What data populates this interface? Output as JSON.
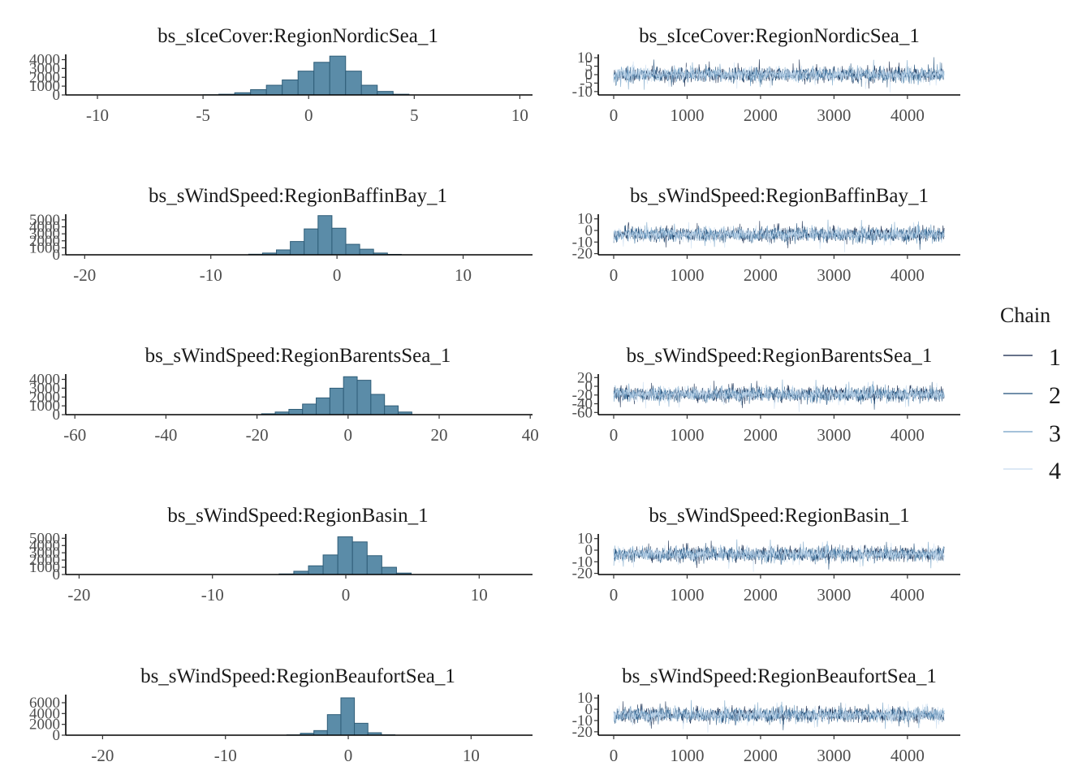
{
  "legend": {
    "title": "Chain",
    "entries": [
      {
        "label": "1",
        "color": "#0a1f44"
      },
      {
        "label": "2",
        "color": "#1f4e79"
      },
      {
        "label": "3",
        "color": "#6f9ec4"
      },
      {
        "label": "4",
        "color": "#c6dbef"
      }
    ]
  },
  "colors": {
    "hist_fill": "#5b8ca8",
    "hist_edge": "#2f5d78",
    "axis": "#000000"
  },
  "chart_data": [
    {
      "type": "bar",
      "title": "bs_sIceCover:RegionNordicSea_1",
      "x": [
        -5,
        -4.25,
        -3.5,
        -2.75,
        -2,
        -1.25,
        -0.5,
        0.25,
        1,
        1.75,
        2.5,
        3.25,
        4
      ],
      "values": [
        20,
        80,
        250,
        600,
        1100,
        1700,
        2700,
        3700,
        4400,
        2700,
        1100,
        400,
        80
      ],
      "xlim": [
        -11.5,
        10.6
      ],
      "xticks": [
        -10,
        -5,
        0,
        5,
        10
      ],
      "ylim": [
        0,
        4600
      ],
      "yticks": [
        0,
        1000,
        2000,
        3000,
        4000
      ]
    },
    {
      "type": "line",
      "title": "bs_sIceCover:RegionNordicSea_1",
      "x_range": [
        1,
        4500
      ],
      "xticks": [
        0,
        1000,
        2000,
        3000,
        4000
      ],
      "ylim": [
        -12,
        12
      ],
      "yticks": [
        -10,
        -5,
        0,
        5,
        10
      ]
    },
    {
      "type": "bar",
      "title": "bs_sWindSpeed:RegionBaffinBay_1",
      "x": [
        -7,
        -5.9,
        -4.8,
        -3.7,
        -2.6,
        -1.5,
        -0.4,
        0.7,
        1.8,
        2.9,
        4
      ],
      "values": [
        80,
        250,
        700,
        1900,
        3700,
        5600,
        3800,
        1500,
        800,
        250,
        60
      ],
      "xlim": [
        -21.5,
        15.5
      ],
      "xticks": [
        -20,
        -10,
        0,
        10
      ],
      "ylim": [
        0,
        5800
      ],
      "yticks": [
        0,
        1000,
        2000,
        3000,
        4000,
        5000
      ]
    },
    {
      "type": "line",
      "title": "bs_sWindSpeed:RegionBaffinBay_1",
      "x_range": [
        1,
        4500
      ],
      "xticks": [
        0,
        1000,
        2000,
        3000,
        4000
      ],
      "ylim": [
        -21,
        14
      ],
      "yticks": [
        -20,
        -10,
        0,
        10
      ]
    },
    {
      "type": "bar",
      "title": "bs_sWindSpeed:RegionBarentsSea_1",
      "x": [
        -19,
        -16,
        -13,
        -10,
        -7,
        -4,
        -1,
        2,
        5,
        8,
        11
      ],
      "values": [
        100,
        300,
        600,
        1200,
        1900,
        3000,
        4300,
        3900,
        2300,
        1000,
        300
      ],
      "xlim": [
        -62,
        40.5
      ],
      "xticks": [
        -60,
        -40,
        -20,
        0,
        20,
        40
      ],
      "ylim": [
        0,
        4600
      ],
      "yticks": [
        0,
        1000,
        2000,
        3000,
        4000
      ]
    },
    {
      "type": "line",
      "title": "bs_sWindSpeed:RegionBarentsSea_1",
      "x_range": [
        1,
        4500
      ],
      "xticks": [
        0,
        1000,
        2000,
        3000,
        4000
      ],
      "ylim": [
        -65,
        28
      ],
      "yticks": [
        -60,
        -40,
        -20,
        0,
        20
      ]
    },
    {
      "type": "bar",
      "title": "bs_sWindSpeed:RegionBasin_1",
      "x": [
        -5,
        -3.9,
        -2.8,
        -1.7,
        -0.6,
        0.5,
        1.6,
        2.7,
        3.8
      ],
      "values": [
        80,
        450,
        1200,
        2700,
        5200,
        4500,
        2600,
        1000,
        200
      ],
      "xlim": [
        -21,
        14
      ],
      "xticks": [
        -20,
        -10,
        0,
        10
      ],
      "ylim": [
        0,
        5600
      ],
      "yticks": [
        0,
        1000,
        2000,
        3000,
        4000,
        5000
      ]
    },
    {
      "type": "line",
      "title": "bs_sWindSpeed:RegionBasin_1",
      "x_range": [
        1,
        4500
      ],
      "xticks": [
        0,
        1000,
        2000,
        3000,
        4000
      ],
      "ylim": [
        -21,
        14
      ],
      "yticks": [
        -20,
        -10,
        0,
        10
      ]
    },
    {
      "type": "bar",
      "title": "bs_sWindSpeed:RegionBeaufortSea_1",
      "x": [
        -5,
        -3.9,
        -2.8,
        -1.7,
        -0.6,
        0.5,
        1.6,
        2.7
      ],
      "values": [
        60,
        350,
        850,
        3800,
        6900,
        2200,
        450,
        80
      ],
      "xlim": [
        -23,
        15
      ],
      "xticks": [
        -20,
        -10,
        0,
        10
      ],
      "ylim": [
        0,
        7500
      ],
      "yticks": [
        0,
        2000,
        4000,
        6000
      ]
    },
    {
      "type": "line",
      "title": "bs_sWindSpeed:RegionBeaufortSea_1",
      "x_range": [
        1,
        4500
      ],
      "xticks": [
        0,
        1000,
        2000,
        3000,
        4000
      ],
      "ylim": [
        -23,
        13
      ],
      "yticks": [
        -20,
        -10,
        0,
        10
      ]
    }
  ]
}
